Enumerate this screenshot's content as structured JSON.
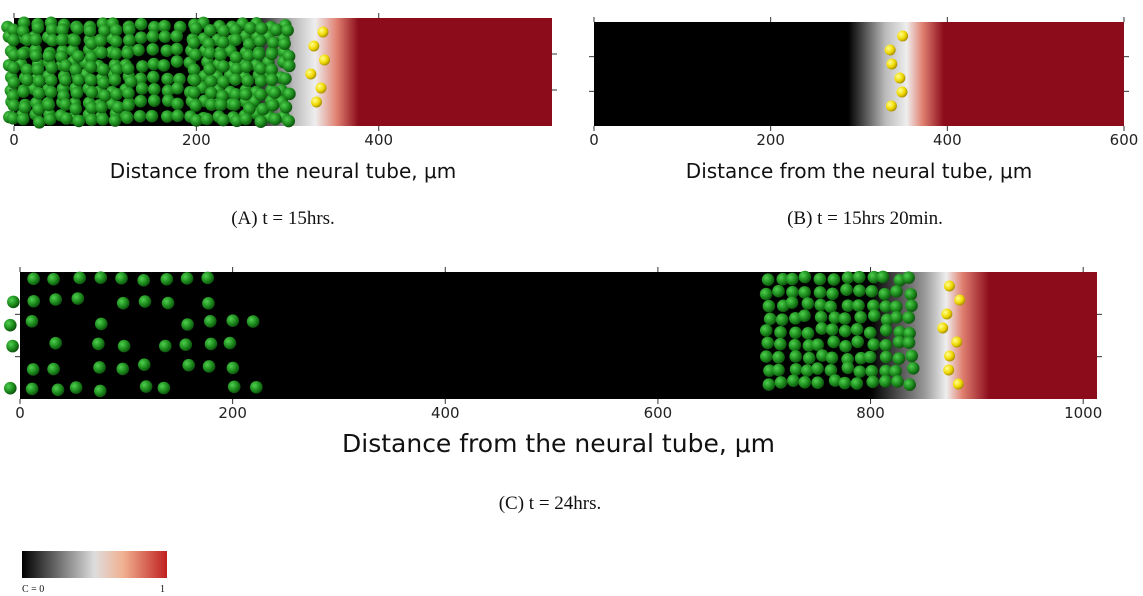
{
  "panels": [
    {
      "caption": "(A)  t = 15hrs.",
      "xlabel": "Distance from the neural tube, μm",
      "xlim": [
        0,
        590
      ],
      "xticks": [
        0,
        200,
        400
      ]
    },
    {
      "caption": "(B)  t = 15hrs 20min.",
      "xlabel": "Distance from the neural tube, μm",
      "xlim": [
        0,
        600
      ],
      "xticks": [
        0,
        200,
        400,
        600
      ]
    },
    {
      "caption": "(C)  t = 24hrs.",
      "xlabel": "Distance from the neural tube, μm",
      "xlim": [
        0,
        1013
      ],
      "xticks": [
        0,
        200,
        400,
        600,
        800,
        1000
      ]
    }
  ],
  "colorbar": {
    "min_label": "C = 0",
    "max_label": "1"
  }
}
